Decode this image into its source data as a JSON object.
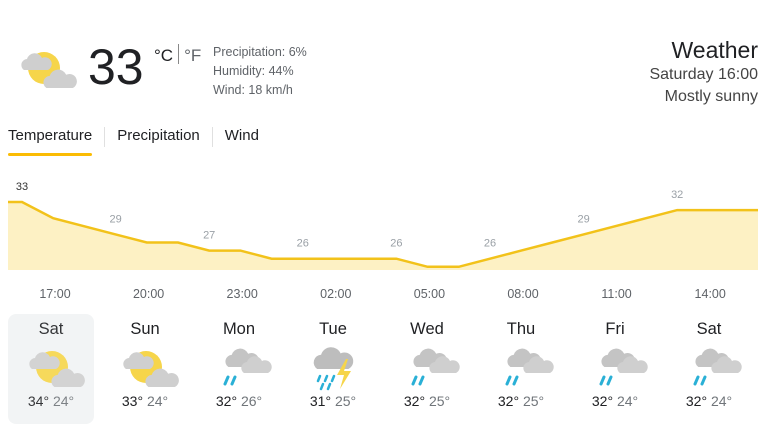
{
  "current": {
    "temperature": "33",
    "unit_c": "°C",
    "unit_f": "°F",
    "icon": "partly-sunny-icon",
    "precipitation": "Precipitation: 6%",
    "humidity": "Humidity: 44%",
    "wind": "Wind: 18 km/h"
  },
  "header": {
    "title": "Weather",
    "datetime": "Saturday 16:00",
    "condition": "Mostly sunny"
  },
  "tabs": [
    {
      "label": "Temperature",
      "active": true
    },
    {
      "label": "Precipitation",
      "active": false
    },
    {
      "label": "Wind",
      "active": false
    }
  ],
  "colors": {
    "accent": "#fbbc04",
    "line": "#f2c21a",
    "fill": "#fdf1c4",
    "rain": "#2ab0d6"
  },
  "chart_data": {
    "type": "area",
    "hourly_values": [
      33,
      31,
      30,
      29,
      28,
      28,
      27,
      27,
      26,
      26,
      26,
      26,
      26,
      25,
      25,
      26,
      27,
      28,
      29,
      30,
      31,
      32,
      32,
      32
    ],
    "labels": [
      {
        "hour": 0,
        "value": "33"
      },
      {
        "hour": 3,
        "value": "29"
      },
      {
        "hour": 6,
        "value": "27"
      },
      {
        "hour": 9,
        "value": "26"
      },
      {
        "hour": 12,
        "value": "26"
      },
      {
        "hour": 15,
        "value": "26"
      },
      {
        "hour": 18,
        "value": "29"
      },
      {
        "hour": 21,
        "value": "32"
      }
    ],
    "times": [
      "17:00",
      "20:00",
      "23:00",
      "02:00",
      "05:00",
      "08:00",
      "11:00",
      "14:00"
    ]
  },
  "days": [
    {
      "name": "Sat",
      "icon": "partly-sunny",
      "high": "34°",
      "low": "24°",
      "selected": true
    },
    {
      "name": "Sun",
      "icon": "partly-sunny",
      "high": "33°",
      "low": "24°"
    },
    {
      "name": "Mon",
      "icon": "rain",
      "high": "32°",
      "low": "26°"
    },
    {
      "name": "Tue",
      "icon": "thunderstorm",
      "high": "31°",
      "low": "25°"
    },
    {
      "name": "Wed",
      "icon": "rain",
      "high": "32°",
      "low": "25°"
    },
    {
      "name": "Thu",
      "icon": "rain",
      "high": "32°",
      "low": "25°"
    },
    {
      "name": "Fri",
      "icon": "rain",
      "high": "32°",
      "low": "24°"
    },
    {
      "name": "Sat",
      "icon": "rain",
      "high": "32°",
      "low": "24°"
    }
  ]
}
